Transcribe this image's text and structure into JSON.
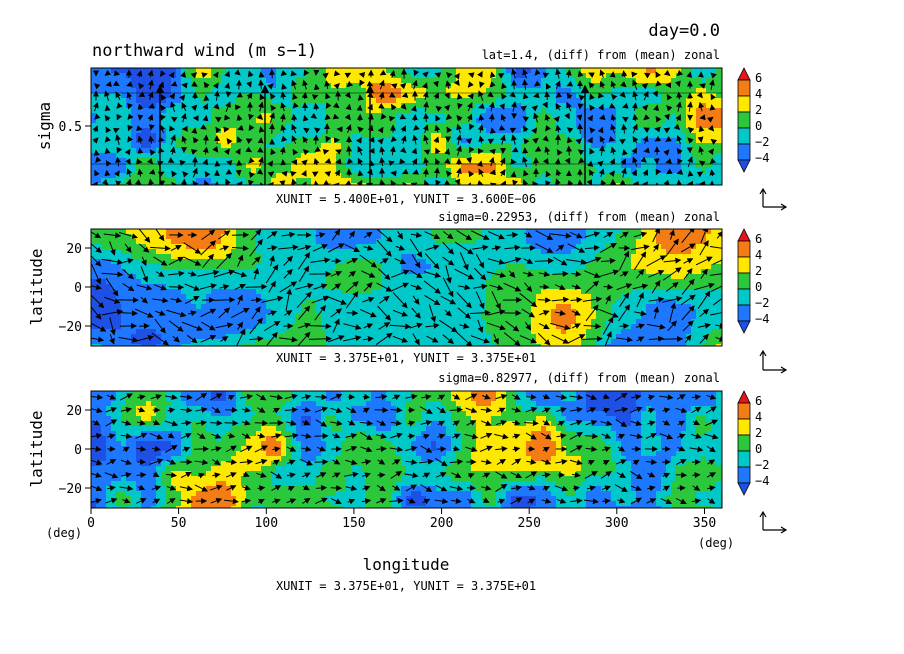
{
  "figure": {
    "title": "northward wind (m s−1)",
    "day_label": "day=0.0",
    "xlabel": "longitude",
    "x_unit_left": "(deg)",
    "x_unit_right": "(deg)",
    "bottom_unit_note": "XUNIT = 3.375E+01, YUNIT = 3.375E+01"
  },
  "colorbar": {
    "levels": [
      "6",
      "4",
      "2",
      "0",
      "−2",
      "−4"
    ],
    "colors": [
      "#e8141c",
      "#f47c14",
      "#ffe800",
      "#2cc83c",
      "#00c8c8",
      "#1e78ff",
      "#1e50e6"
    ]
  },
  "panels": [
    {
      "id": "top",
      "subtitle": "lat=1.4, (diff) from (mean) zonal",
      "ylabel": "sigma",
      "yticks": [
        "0.5"
      ],
      "unit_note": "XUNIT = 5.400E+01, YUNIT = 3.600E−06"
    },
    {
      "id": "middle",
      "subtitle": "sigma=0.22953, (diff) from (mean) zonal",
      "ylabel": "latitude",
      "yticks": [
        "20",
        "0",
        "−20"
      ],
      "unit_note": "XUNIT = 3.375E+01, YUNIT = 3.375E+01"
    },
    {
      "id": "bottom",
      "subtitle": "sigma=0.82977, (diff) from (mean) zonal",
      "ylabel": "latitude",
      "yticks": [
        "20",
        "0",
        "−20"
      ],
      "xticks": [
        "0",
        "50",
        "100",
        "150",
        "200",
        "250",
        "300",
        "350"
      ]
    }
  ],
  "chart_data": [
    {
      "type": "heatmap",
      "title": "northward wind (m s−1)",
      "subtitle": "lat=1.4, (diff) from (mean) zonal",
      "xlabel": "",
      "ylabel": "sigma",
      "xlim": [
        0,
        360
      ],
      "ylim": [
        0,
        1
      ],
      "yticks": [
        0.5
      ],
      "levels": [
        -4,
        -2,
        0,
        2,
        4,
        6
      ],
      "vectors": true,
      "grid": false
    },
    {
      "type": "heatmap",
      "subtitle": "sigma=0.22953, (diff) from (mean) zonal",
      "xlabel": "",
      "ylabel": "latitude",
      "xlim": [
        0,
        360
      ],
      "ylim": [
        -30,
        30
      ],
      "yticks": [
        -20,
        0,
        20
      ],
      "levels": [
        -4,
        -2,
        0,
        2,
        4,
        6
      ],
      "vectors": true,
      "grid": false
    },
    {
      "type": "heatmap",
      "subtitle": "sigma=0.82977, (diff) from (mean) zonal",
      "xlabel": "longitude",
      "ylabel": "latitude",
      "xlim": [
        0,
        360
      ],
      "ylim": [
        -30,
        30
      ],
      "xticks": [
        0,
        50,
        100,
        150,
        200,
        250,
        300,
        350
      ],
      "yticks": [
        -20,
        0,
        20
      ],
      "levels": [
        -4,
        -2,
        0,
        2,
        4,
        6
      ],
      "vectors": true,
      "grid": false
    }
  ]
}
